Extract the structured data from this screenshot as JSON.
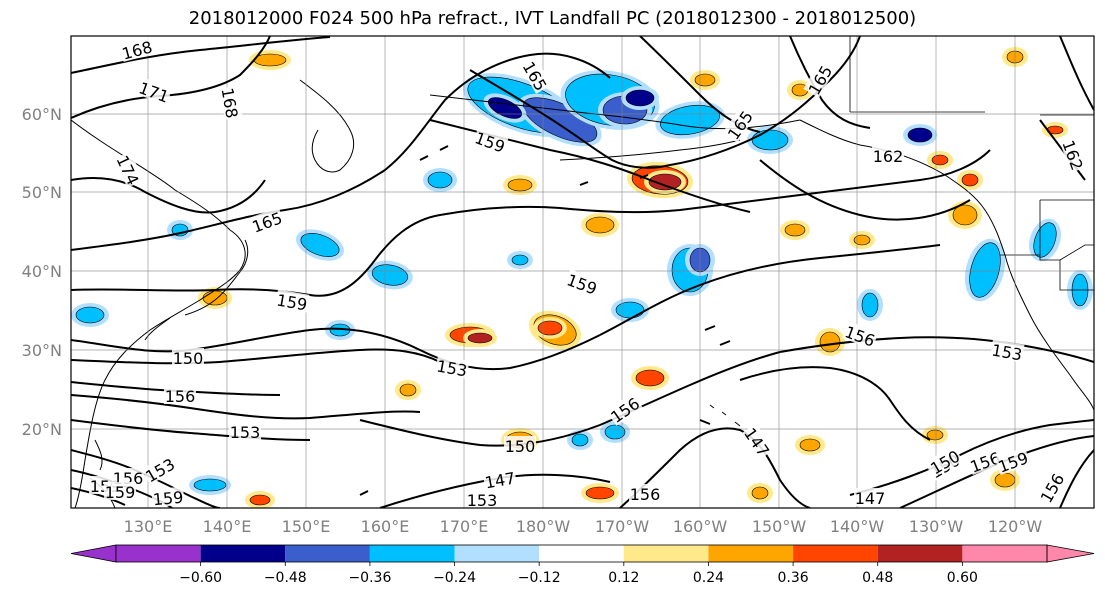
{
  "title": "2018012000 F024 500 hPa refract., IVT Landfall PC (2018012300 - 2018012500)",
  "lat_labels": [
    "60°N",
    "50°N",
    "40°N",
    "30°N",
    "20°N"
  ],
  "lon_labels": [
    "130°E",
    "140°E",
    "150°E",
    "160°E",
    "170°E",
    "180°W",
    "170°W",
    "160°W",
    "150°W",
    "140°W",
    "130°W",
    "120°W"
  ],
  "colorbar": {
    "ticks": [
      "−0.60",
      "−0.48",
      "−0.36",
      "−0.24",
      "−0.12",
      "0.12",
      "0.24",
      "0.36",
      "0.48",
      "0.60"
    ],
    "colors": [
      "#9932cc",
      "#00008b",
      "#3a5fcd",
      "#00bfff",
      "#b2dfff",
      "#ffffff",
      "#ffe98a",
      "#ffa500",
      "#ff4500",
      "#b22222",
      "#ff88aa"
    ],
    "extend": "both"
  },
  "contour_labels": [
    "168",
    "171",
    "168",
    "174",
    "165",
    "165",
    "165",
    "165",
    "159",
    "162",
    "162",
    "159",
    "159",
    "150",
    "156",
    "153",
    "159",
    "156",
    "153",
    "153",
    "156",
    "156",
    "150",
    "147",
    "147",
    "147",
    "153",
    "159",
    "156",
    "150",
    "156",
    "159",
    "156",
    "153",
    "150",
    "159"
  ],
  "gridlines": true
}
